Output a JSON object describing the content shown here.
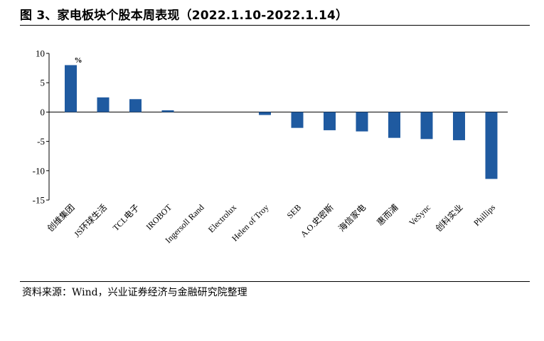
{
  "title": "图 3、家电板块个股本周表现（2022.1.10-2022.1.14）",
  "source": "资料来源：Wind，兴业证券经济与金融研究院整理",
  "chart_data": {
    "type": "bar",
    "unit_label": "%",
    "categories": [
      "创维集团",
      "JS环球生活",
      "TCL电子",
      "IROBOT",
      "Ingersoll Rand",
      "Electrolux",
      "Helen of Troy",
      "SEB",
      "A.O.史密斯",
      "海信家电",
      "惠而浦",
      "VeSync",
      "创科实业",
      "Phillips"
    ],
    "values": [
      8.0,
      2.5,
      2.2,
      0.3,
      0.0,
      0.0,
      -0.5,
      -2.7,
      -3.1,
      -3.3,
      -4.4,
      -4.6,
      -4.8,
      -11.4
    ],
    "ylim": [
      -15,
      10
    ],
    "yticks": [
      10,
      5,
      0,
      -5,
      -10,
      -15
    ],
    "bar_color": "#1f5aa0",
    "grid": false,
    "legend": "none"
  }
}
